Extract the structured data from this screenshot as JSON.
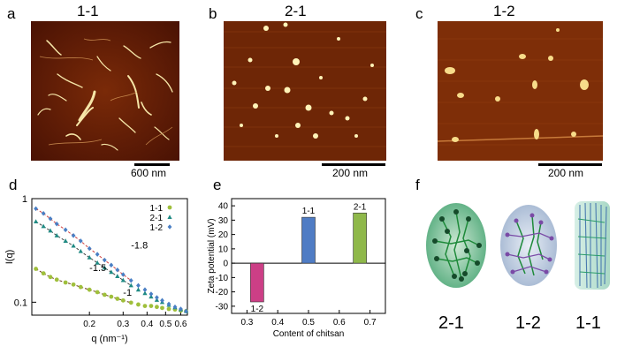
{
  "panels": {
    "a": {
      "letter": "a",
      "title": "1-1",
      "scale": "600 nm"
    },
    "b": {
      "letter": "b",
      "title": "2-1",
      "scale": "200 nm"
    },
    "c": {
      "letter": "c",
      "title": "1-2",
      "scale": "200 nm"
    },
    "d": {
      "letter": "d"
    },
    "e": {
      "letter": "e"
    },
    "f": {
      "letter": "f",
      "labels": [
        "2-1",
        "1-2",
        "1-1"
      ]
    }
  },
  "colors": {
    "afm_dark": "#3a0c02",
    "afm_mid": "#9a3d10",
    "afm_bright": "#fff6c8",
    "series_1_1": "#9fbf3b",
    "series_2_1": "#1f8a83",
    "series_1_2": "#4a7fc4",
    "bar_neg": "#cc3f86",
    "bar_mid": "#4f7cc4",
    "bar_high": "#8fb84a"
  },
  "chart_data": [
    {
      "type": "scatter",
      "xlabel": "q (nm⁻¹)",
      "ylabel": "I(q)",
      "xscale": "log",
      "yscale": "log",
      "xlim": [
        0.1,
        0.65
      ],
      "ylim": [
        0.075,
        1.0
      ],
      "xticks": [
        0.2,
        0.3,
        0.4,
        0.5,
        0.6
      ],
      "yticks": [
        0.1,
        1
      ],
      "ytick_labels": [
        "0.1",
        "1"
      ],
      "xtick_labels": [
        "0.2",
        "0.3",
        "0.4",
        "0.5",
        "0.6"
      ],
      "legend": "top-right",
      "series": [
        {
          "name": "1-1",
          "marker": "circle",
          "x": [
            0.105,
            0.115,
            0.125,
            0.135,
            0.15,
            0.165,
            0.18,
            0.2,
            0.22,
            0.24,
            0.26,
            0.28,
            0.3,
            0.33,
            0.36,
            0.39,
            0.42,
            0.45,
            0.48,
            0.52,
            0.56,
            0.6,
            0.64
          ],
          "y": [
            0.21,
            0.19,
            0.175,
            0.165,
            0.155,
            0.148,
            0.14,
            0.132,
            0.125,
            0.118,
            0.113,
            0.108,
            0.104,
            0.099,
            0.095,
            0.092,
            0.092,
            0.09,
            0.088,
            0.086,
            0.085,
            0.083,
            0.082
          ]
        },
        {
          "name": "2-1",
          "marker": "triangle",
          "x": [
            0.105,
            0.115,
            0.125,
            0.135,
            0.15,
            0.165,
            0.18,
            0.2,
            0.22,
            0.24,
            0.26,
            0.28,
            0.3,
            0.33,
            0.36,
            0.39,
            0.42,
            0.45,
            0.48,
            0.52,
            0.56,
            0.6,
            0.64
          ],
          "y": [
            0.6,
            0.54,
            0.49,
            0.44,
            0.39,
            0.35,
            0.31,
            0.27,
            0.24,
            0.215,
            0.195,
            0.178,
            0.163,
            0.145,
            0.132,
            0.122,
            0.113,
            0.105,
            0.1,
            0.094,
            0.089,
            0.085,
            0.082
          ]
        },
        {
          "name": "1-2",
          "marker": "diamond",
          "x": [
            0.105,
            0.115,
            0.125,
            0.135,
            0.15,
            0.165,
            0.18,
            0.2,
            0.22,
            0.24,
            0.26,
            0.28,
            0.3,
            0.33,
            0.36,
            0.39,
            0.42,
            0.45,
            0.48,
            0.52,
            0.56,
            0.6,
            0.64
          ],
          "y": [
            0.8,
            0.72,
            0.64,
            0.57,
            0.5,
            0.44,
            0.39,
            0.33,
            0.29,
            0.255,
            0.228,
            0.205,
            0.185,
            0.162,
            0.145,
            0.132,
            0.12,
            0.111,
            0.104,
            0.096,
            0.09,
            0.086,
            0.082
          ]
        }
      ],
      "annotations": [
        {
          "text": "-1.8",
          "x": 0.33,
          "y": 0.33
        },
        {
          "text": "-1.5",
          "x": 0.2,
          "y": 0.2
        },
        {
          "text": "-1",
          "x": 0.3,
          "y": 0.115
        }
      ]
    },
    {
      "type": "bar",
      "xlabel": "Content of chitsan",
      "ylabel": "Zeta potential (mV)",
      "xlim": [
        0.25,
        0.75
      ],
      "ylim": [
        -35,
        45
      ],
      "xticks": [
        0.3,
        0.4,
        0.5,
        0.6,
        0.7
      ],
      "xtick_labels": [
        "0.3",
        "0.4",
        "0.5",
        "0.6",
        "0.7"
      ],
      "yticks": [
        -30,
        -20,
        -10,
        0,
        10,
        20,
        30,
        40
      ],
      "ytick_labels": [
        "-30",
        "-20",
        "-10",
        "0",
        "10",
        "20",
        "30",
        "40"
      ],
      "bars": [
        {
          "x": 0.333,
          "value": -27,
          "label": "1-2"
        },
        {
          "x": 0.5,
          "value": 32,
          "label": "1-1"
        },
        {
          "x": 0.667,
          "value": 35,
          "label": "2-1"
        }
      ]
    }
  ]
}
